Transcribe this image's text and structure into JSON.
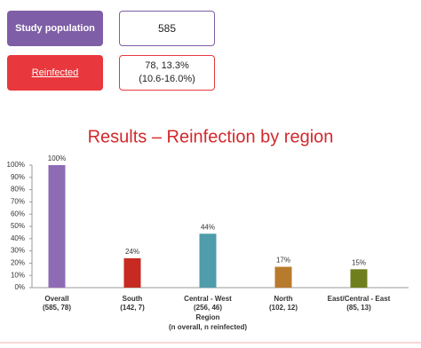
{
  "summary": {
    "study_label": "Study population",
    "study_value": "585",
    "reinfected_label": "Reinfected",
    "reinfected_value": "78, 13.3%",
    "reinfected_ci": "(10.6-16.0%)"
  },
  "chart_data": {
    "type": "bar",
    "title": "Results – Reinfection by region",
    "categories": [
      "Overall",
      "South",
      "Central - West",
      "North",
      "East/Central - East"
    ],
    "category_counts": [
      "(585, 78)",
      "(142, 7)",
      "(256, 46)",
      "(102, 12)",
      "(85, 13)"
    ],
    "values": [
      100,
      24,
      44,
      17,
      15
    ],
    "value_labels": [
      "100%",
      "24%",
      "44%",
      "17%",
      "15%"
    ],
    "colors": [
      "#8e6bb5",
      "#c62a22",
      "#4f9cab",
      "#b87a2c",
      "#6f7f1e"
    ],
    "x_label": "Region",
    "x_sublabel": "(n overall, n reinfected)",
    "ylim": [
      0,
      100
    ],
    "yticks": [
      {
        "value": 0,
        "label": "0%"
      },
      {
        "value": 10,
        "label": "10%"
      },
      {
        "value": 20,
        "label": "20%"
      },
      {
        "value": 30,
        "label": "30%"
      },
      {
        "value": 40,
        "label": "40%"
      },
      {
        "value": 50,
        "label": "50%"
      },
      {
        "value": 60,
        "label": "60%"
      },
      {
        "value": 70,
        "label": "70%"
      },
      {
        "value": 80,
        "label": "80%"
      },
      {
        "value": 90,
        "label": "90%"
      },
      {
        "value": 100,
        "label": "100%"
      }
    ],
    "grid": false
  }
}
